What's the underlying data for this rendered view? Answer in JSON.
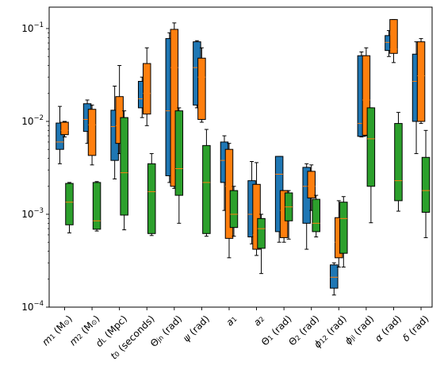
{
  "chart_data": {
    "type": "boxplot",
    "title": "",
    "xlabel": "",
    "ylabel": "",
    "yscale": "log",
    "ylim": [
      0.0001,
      0.17
    ],
    "y_ticks": [
      {
        "value": 0.0001,
        "base": "10",
        "exp": "−4"
      },
      {
        "value": 0.001,
        "base": "10",
        "exp": "−3"
      },
      {
        "value": 0.01,
        "base": "10",
        "exp": "−2"
      },
      {
        "value": 0.1,
        "base": "10",
        "exp": "−1"
      }
    ],
    "grid": false,
    "legend": "none",
    "colors": [
      "#1f77b4",
      "#ff7f0e",
      "#2ca02c"
    ],
    "median_color": "#ff7f0e",
    "categories": [
      {
        "parts": [
          [
            "m",
            "i"
          ],
          [
            "1",
            "sub"
          ],
          [
            " (M",
            ""
          ],
          [
            "⊙",
            "sub"
          ],
          [
            ")",
            ""
          ]
        ]
      },
      {
        "parts": [
          [
            "m",
            "i"
          ],
          [
            "2",
            "sub"
          ],
          [
            " (M",
            ""
          ],
          [
            "⊙",
            "sub"
          ],
          [
            ")",
            ""
          ]
        ]
      },
      {
        "parts": [
          [
            "d",
            "i"
          ],
          [
            "L",
            "sub"
          ],
          [
            " (Mpc)",
            ""
          ]
        ]
      },
      {
        "parts": [
          [
            "t",
            "i"
          ],
          [
            "0",
            "sub"
          ],
          [
            " (seconds)",
            ""
          ]
        ]
      },
      {
        "parts": [
          [
            "Θ",
            ""
          ],
          [
            "jn",
            "sub"
          ],
          [
            " (rad)",
            ""
          ]
        ]
      },
      {
        "parts": [
          [
            "ψ",
            "i"
          ],
          [
            " (rad)",
            ""
          ]
        ]
      },
      {
        "parts": [
          [
            "a",
            "i"
          ],
          [
            "1",
            "sub"
          ]
        ]
      },
      {
        "parts": [
          [
            "a",
            "i"
          ],
          [
            "2",
            "sub"
          ]
        ]
      },
      {
        "parts": [
          [
            "Θ",
            ""
          ],
          [
            "1",
            "sub"
          ],
          [
            " (rad)",
            ""
          ]
        ]
      },
      {
        "parts": [
          [
            "Θ",
            ""
          ],
          [
            "2",
            "sub"
          ],
          [
            " (rad)",
            ""
          ]
        ]
      },
      {
        "parts": [
          [
            "ϕ",
            "i"
          ],
          [
            "12",
            "sub"
          ],
          [
            " (rad)",
            ""
          ]
        ]
      },
      {
        "parts": [
          [
            "ϕ",
            "i"
          ],
          [
            "jl",
            "sub"
          ],
          [
            " (rad)",
            ""
          ]
        ]
      },
      {
        "parts": [
          [
            "α",
            "i"
          ],
          [
            " (rad)",
            ""
          ]
        ]
      },
      {
        "parts": [
          [
            "δ",
            "i"
          ],
          [
            " (rad)",
            ""
          ]
        ]
      }
    ],
    "series": [
      {
        "boxes": [
          {
            "whislo": 0.0035,
            "q1": 0.005,
            "med": 0.006,
            "q3": 0.0096,
            "whishi": 0.0145
          },
          {
            "whislo": 0.0058,
            "q1": 0.0078,
            "med": 0.0105,
            "q3": 0.0155,
            "whishi": 0.017
          },
          {
            "whislo": 0.0024,
            "q1": 0.0038,
            "med": 0.0088,
            "q3": 0.0132,
            "whishi": 0.024
          },
          {
            "whislo": 0.011,
            "q1": 0.014,
            "med": 0.0175,
            "q3": 0.027,
            "whishi": 0.03
          },
          {
            "whislo": 0.0022,
            "q1": 0.0026,
            "med": 0.013,
            "q3": 0.078,
            "whishi": 0.09
          },
          {
            "whislo": 0.014,
            "q1": 0.015,
            "med": 0.038,
            "q3": 0.072,
            "whishi": 0.074
          },
          {
            "whislo": 0.0011,
            "q1": 0.0022,
            "med": 0.0038,
            "q3": 0.006,
            "whishi": 0.007
          },
          {
            "whislo": 0.00048,
            "q1": 0.00057,
            "med": 0.001,
            "q3": 0.0023,
            "whishi": 0.0037
          },
          {
            "whislo": 0.0005,
            "q1": 0.00065,
            "med": 0.0027,
            "q3": 0.0042,
            "whishi": 0.0042
          },
          {
            "whislo": 0.00042,
            "q1": 0.0008,
            "med": 0.002,
            "q3": 0.0032,
            "whishi": 0.0035
          },
          {
            "whislo": 0.000135,
            "q1": 0.00016,
            "med": 0.00021,
            "q3": 0.000285,
            "whishi": 0.0003
          },
          {
            "whislo": 0.0068,
            "q1": 0.0069,
            "med": 0.0095,
            "q3": 0.051,
            "whishi": 0.056
          },
          {
            "whislo": 0.05,
            "q1": 0.058,
            "med": 0.071,
            "q3": 0.084,
            "whishi": 0.095
          },
          {
            "whislo": 0.0045,
            "q1": 0.01,
            "med": 0.027,
            "q3": 0.053,
            "whishi": 0.072
          }
        ]
      },
      {
        "boxes": [
          {
            "whislo": 0.0068,
            "q1": 0.0072,
            "med": 0.008,
            "q3": 0.0098,
            "whishi": 0.01
          },
          {
            "whislo": 0.0034,
            "q1": 0.0043,
            "med": 0.0092,
            "q3": 0.0135,
            "whishi": 0.015
          },
          {
            "whislo": 0.0045,
            "q1": 0.0058,
            "med": 0.009,
            "q3": 0.0185,
            "whishi": 0.04
          },
          {
            "whislo": 0.009,
            "q1": 0.012,
            "med": 0.02,
            "q3": 0.042,
            "whishi": 0.062
          },
          {
            "whislo": 0.0019,
            "q1": 0.002,
            "med": 0.038,
            "q3": 0.098,
            "whishi": 0.115
          },
          {
            "whislo": 0.0098,
            "q1": 0.0105,
            "med": 0.03,
            "q3": 0.048,
            "whishi": 0.062
          },
          {
            "whislo": 0.00034,
            "q1": 0.00055,
            "med": 0.002,
            "q3": 0.005,
            "whishi": 0.0058
          },
          {
            "whislo": 0.00036,
            "q1": 0.00042,
            "med": 0.0006,
            "q3": 0.0021,
            "whishi": 0.0036
          },
          {
            "whislo": 0.0005,
            "q1": 0.00056,
            "med": 0.0011,
            "q3": 0.0018,
            "whishi": 0.0018
          },
          {
            "whislo": 0.0011,
            "q1": 0.0015,
            "med": 0.002,
            "q3": 0.0029,
            "whishi": 0.0034
          },
          {
            "whislo": 0.00027,
            "q1": 0.00034,
            "med": 0.0005,
            "q3": 0.00092,
            "whishi": 0.0014
          },
          {
            "whislo": 0.007,
            "q1": 0.0071,
            "med": 0.017,
            "q3": 0.051,
            "whishi": 0.062
          },
          {
            "whislo": 0.043,
            "q1": 0.054,
            "med": 0.06,
            "q3": 0.125,
            "whishi": 0.125
          },
          {
            "whislo": 0.0095,
            "q1": 0.01,
            "med": 0.031,
            "q3": 0.072,
            "whishi": 0.078
          }
        ]
      },
      {
        "boxes": [
          {
            "whislo": 0.00063,
            "q1": 0.00077,
            "med": 0.00135,
            "q3": 0.00215,
            "whishi": 0.0022
          },
          {
            "whislo": 0.00066,
            "q1": 0.00069,
            "med": 0.00085,
            "q3": 0.0022,
            "whishi": 0.00225
          },
          {
            "whislo": 0.00068,
            "q1": 0.00098,
            "med": 0.0028,
            "q3": 0.011,
            "whishi": 0.013
          },
          {
            "whislo": 0.00059,
            "q1": 0.00062,
            "med": 0.00175,
            "q3": 0.0035,
            "whishi": 0.0045
          },
          {
            "whislo": 0.0008,
            "q1": 0.0016,
            "med": 0.0031,
            "q3": 0.013,
            "whishi": 0.014
          },
          {
            "whislo": 0.00058,
            "q1": 0.00062,
            "med": 0.0022,
            "q3": 0.0055,
            "whishi": 0.0082
          },
          {
            "whislo": 0.00058,
            "q1": 0.00072,
            "med": 0.001,
            "q3": 0.0018,
            "whishi": 0.002
          },
          {
            "whislo": 0.00023,
            "q1": 0.00043,
            "med": 0.0007,
            "q3": 0.0009,
            "whishi": 0.001
          },
          {
            "whislo": 0.00054,
            "q1": 0.00085,
            "med": 0.0012,
            "q3": 0.0017,
            "whishi": 0.0018
          },
          {
            "whislo": 0.00057,
            "q1": 0.00065,
            "med": 0.0008,
            "q3": 0.00145,
            "whishi": 0.0016
          },
          {
            "whislo": 0.00027,
            "q1": 0.00038,
            "med": 0.0009,
            "q3": 0.00135,
            "whishi": 0.00155
          },
          {
            "whislo": 0.00081,
            "q1": 0.002,
            "med": 0.0065,
            "q3": 0.014,
            "whishi": 0.014
          },
          {
            "whislo": 0.00108,
            "q1": 0.0014,
            "med": 0.0023,
            "q3": 0.0095,
            "whishi": 0.0125
          },
          {
            "whislo": 0.00056,
            "q1": 0.00105,
            "med": 0.0018,
            "q3": 0.0041,
            "whishi": 0.008
          }
        ]
      }
    ]
  }
}
